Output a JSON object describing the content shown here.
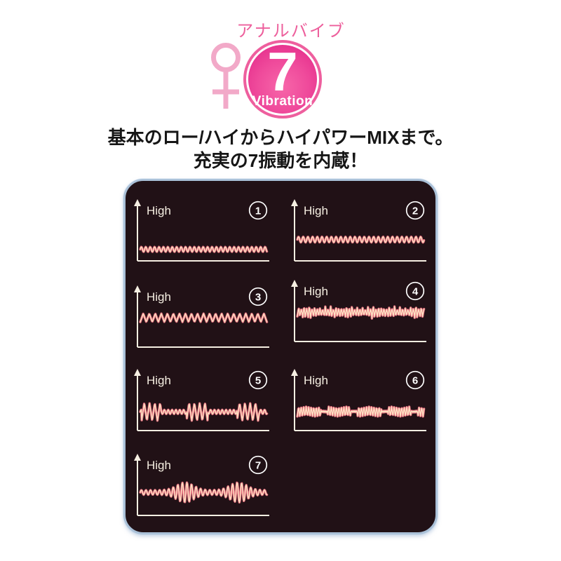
{
  "header": {
    "top_label": "アナルバイブ",
    "gender_symbol": "female-sign",
    "badge": {
      "number": "7",
      "text": "Vibration"
    },
    "headline_line1": "基本のロー/ハイからハイパワーMIXまで。",
    "headline_line2": "充実の7振動を内蔵！"
  },
  "colors": {
    "label_pink": "#ed5f9c",
    "symbol_pink": "#f2a9c8",
    "badge_pink": "#e52e8c",
    "headline_black": "#161616",
    "panel_bg": "#211116",
    "panel_border": "#aac1d8",
    "axis_white": "#f6efe2",
    "wave_outer_pink": "#e26e7e",
    "wave_inner_cream": "#ffe4c4",
    "circle_number_white": "#ffffff"
  },
  "chart_data": {
    "type": "line",
    "title": "7 vibration patterns (intensity vs time)",
    "ylabel": "High",
    "x_axis": "time (unlabeled)",
    "grid": false,
    "charts": [
      {
        "number": "1",
        "axis_label": "High",
        "pattern": "sine",
        "level": 0.2,
        "params": {
          "period": 6.3,
          "amp": 3.5
        },
        "description": "steady low-intensity fine sine vibration"
      },
      {
        "number": "2",
        "axis_label": "High",
        "pattern": "sine",
        "level": 0.37,
        "params": {
          "period": 6.7,
          "amp": 4
        },
        "description": "steady medium-intensity fine sine vibration"
      },
      {
        "number": "3",
        "axis_label": "High",
        "pattern": "triangle",
        "level": 0.51,
        "params": {
          "period": 8.6,
          "amp": 6
        },
        "description": "steady high-intensity zigzag vibration"
      },
      {
        "number": "4",
        "axis_label": "High",
        "pattern": "spiky",
        "level": 0.51,
        "params": {
          "period": 3.8,
          "amp_var": [
            6,
            4,
            8,
            5,
            9,
            4,
            7,
            5
          ]
        },
        "description": "steady high-intensity dense jagged vibration"
      },
      {
        "number": "5",
        "axis_label": "High",
        "pattern": "heartbeat",
        "level": 0.325,
        "params": {
          "ripple_period": 5.5,
          "ripple_amp": 3,
          "burst_period": 7.5,
          "burst_amp": 12.5,
          "burst_windows": [
            [
              2,
              30
            ],
            [
              66,
              96
            ],
            [
              138,
              170
            ]
          ]
        },
        "description": "pulse bursts of strong spikes between fine ripples"
      },
      {
        "number": "6",
        "axis_label": "High",
        "pattern": "packets",
        "level": 0.33,
        "params": {
          "period": 3.6,
          "amp": 7,
          "packet_len": 34,
          "gap_len": 9,
          "gap_amp": 1.2
        },
        "description": "repeating packets of dense medium vibration"
      },
      {
        "number": "7",
        "axis_label": "High",
        "pattern": "am",
        "level": 0.4,
        "params": {
          "period": 6.5,
          "ripple_amp": 3.3,
          "bursts": [
            {
              "center": 64,
              "sigma": 12,
              "amp": 11
            },
            {
              "center": 140,
              "sigma": 12,
              "amp": 11
            }
          ]
        },
        "description": "gentle ripple swelling twice into strong wave bursts"
      }
    ]
  }
}
